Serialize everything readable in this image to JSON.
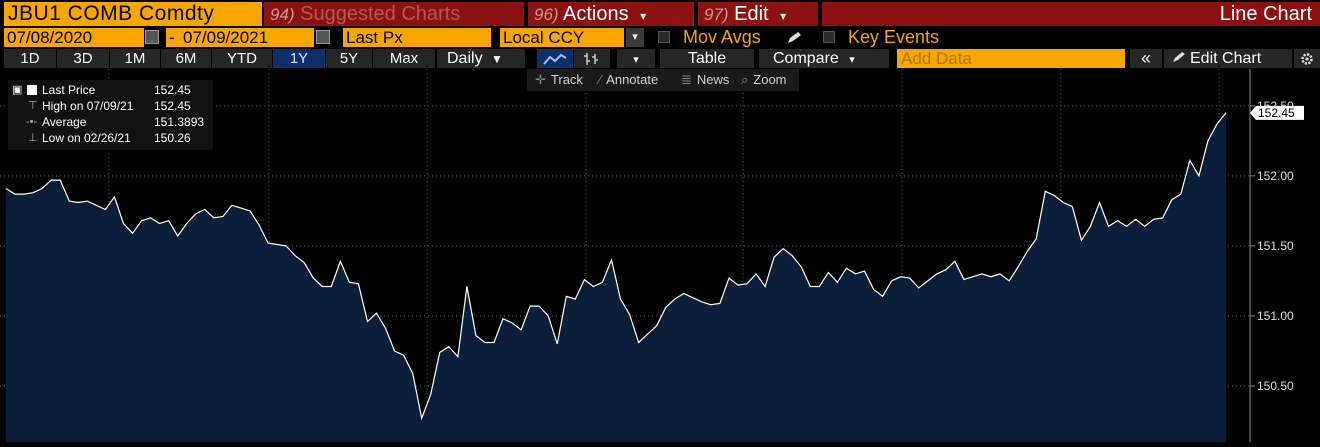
{
  "header": {
    "ticker": "JBU1 COMB Comdty",
    "suggested_num": "94)",
    "suggested_label": "Suggested Charts",
    "actions_num": "96)",
    "actions_label": "Actions",
    "edit_num": "97)",
    "edit_label": "Edit",
    "dropdown_glyph": "▾",
    "view_title": "Line Chart"
  },
  "settings": {
    "start_date": "07/08/2020",
    "date_separator": "-",
    "end_date": "07/09/2021",
    "field": "Last Px",
    "currency": "Local CCY",
    "mov_avgs_label": "Mov Avgs",
    "key_events_label": "Key Events"
  },
  "periods": [
    "1D",
    "3D",
    "1M",
    "6M",
    "YTD",
    "1Y",
    "5Y",
    "Max"
  ],
  "active_period": "1Y",
  "toolbar": {
    "frequency": "Daily",
    "frequency_arrow": "▼",
    "table_label": "Table",
    "compare_label": "Compare",
    "add_data_placeholder": "Add Data",
    "collapse_glyph": "«",
    "edit_chart_label": "Edit Chart"
  },
  "chart_tools": {
    "track": "Track",
    "annotate": "Annotate",
    "news": "News",
    "zoom": "Zoom"
  },
  "legend": {
    "rows": [
      {
        "label": "Last Price",
        "value": "152.45"
      },
      {
        "label": "High on 07/09/21",
        "value": "152.45"
      },
      {
        "label": "Average",
        "value": "151.3893"
      },
      {
        "label": "Low on 02/26/21",
        "value": "150.26"
      }
    ]
  },
  "colors": {
    "accent_orange": "#f7a600",
    "header_red": "#8c1111",
    "area_fill": "#0b1e3a",
    "line": "#ffffff"
  },
  "chart_data": {
    "type": "area",
    "series": [
      {
        "values": [
          151.91,
          151.87,
          151.87,
          151.88,
          151.91,
          151.97,
          151.97,
          151.82,
          151.81,
          151.82,
          151.79,
          151.76,
          151.85,
          151.66,
          151.59,
          151.68,
          151.7,
          151.66,
          151.68,
          151.57,
          151.66,
          151.73,
          151.76,
          151.7,
          151.71,
          151.79,
          151.77,
          151.75,
          151.65,
          151.52,
          151.51,
          151.5,
          151.43,
          151.38,
          151.27,
          151.21,
          151.21,
          151.39,
          151.24,
          151.23,
          150.96,
          151.02,
          150.91,
          150.75,
          150.72,
          150.59,
          150.27,
          150.44,
          150.74,
          150.78,
          150.71,
          151.21,
          150.86,
          150.81,
          150.81,
          150.98,
          150.95,
          150.9,
          151.07,
          151.07,
          151.0,
          150.8,
          151.14,
          151.12,
          151.26,
          151.21,
          151.24,
          151.4,
          151.12,
          151.01,
          150.81,
          150.87,
          150.93,
          151.06,
          151.12,
          151.16,
          151.13,
          151.1,
          151.08,
          151.09,
          151.27,
          151.22,
          151.23,
          151.3,
          151.21,
          151.42,
          151.48,
          151.43,
          151.35,
          151.21,
          151.21,
          151.31,
          151.24,
          151.34,
          151.3,
          151.32,
          151.19,
          151.14,
          151.25,
          151.28,
          151.27,
          151.2,
          151.25,
          151.3,
          151.33,
          151.39,
          151.26,
          151.28,
          151.3,
          151.28,
          151.3,
          151.25,
          151.35,
          151.46,
          151.55,
          151.89,
          151.86,
          151.81,
          151.78,
          151.54,
          151.64,
          151.81,
          151.64,
          151.68,
          151.64,
          151.69,
          151.64,
          151.69,
          151.7,
          151.83,
          151.87,
          152.11,
          152.0,
          152.25,
          152.37,
          152.45
        ]
      }
    ],
    "y_ticks": [
      "150.50",
      "151.00",
      "151.50",
      "152.00",
      "152.50"
    ],
    "last_value_label": "152.45",
    "ylim": [
      150.1,
      152.72
    ],
    "grid": true
  }
}
